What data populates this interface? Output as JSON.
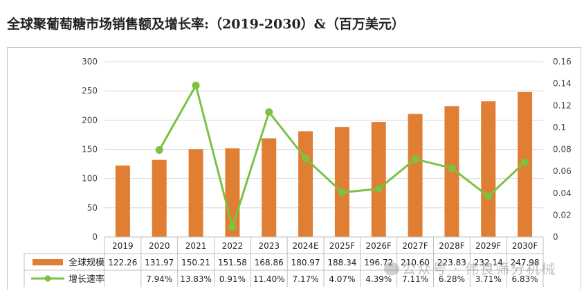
{
  "title": "全球聚葡萄糖市场销售额及增长率:（2019-2030）&（百万美元）",
  "watermark": "公众号 · 伟良筛分机械",
  "chart_data": {
    "type": "bar",
    "categories": [
      "2019",
      "2020",
      "2021",
      "2022",
      "2023",
      "2024E",
      "2025F",
      "2026F",
      "2027F",
      "2028F",
      "2029F",
      "2030F"
    ],
    "series": [
      {
        "name": "全球规模",
        "type": "bar",
        "color": "#E07F33",
        "values": [
          122.26,
          131.97,
          150.21,
          151.58,
          168.86,
          180.97,
          188.34,
          196.72,
          210.6,
          223.83,
          232.14,
          247.98
        ],
        "labels": [
          "122.26",
          "131.97",
          "150.21",
          "151.58",
          "168.86",
          "180.97",
          "188.34",
          "196.72",
          "210.60",
          "223.83",
          "232.14",
          "247.98"
        ]
      },
      {
        "name": "增长速率",
        "type": "line",
        "color": "#7CC142",
        "values": [
          null,
          0.0794,
          0.1383,
          0.0091,
          0.114,
          0.0717,
          0.0407,
          0.0439,
          0.0711,
          0.0628,
          0.0371,
          0.0683
        ],
        "labels": [
          "",
          "7.94%",
          "13.83%",
          "0.91%",
          "11.40%",
          "7.17%",
          "4.07%",
          "4.39%",
          "7.11%",
          "6.28%",
          "3.71%",
          "6.83%"
        ]
      }
    ],
    "y_left": {
      "min": 0,
      "max": 300,
      "ticks": [
        "0",
        "50",
        "100",
        "150",
        "200",
        "250",
        "300"
      ]
    },
    "y_right": {
      "min": 0,
      "max": 0.16,
      "ticks": [
        "0",
        "0.02",
        "0.04",
        "0.06",
        "0.08",
        "0.1",
        "0.12",
        "0.14",
        "0.16"
      ]
    },
    "grid": true,
    "legend": "data-table"
  }
}
